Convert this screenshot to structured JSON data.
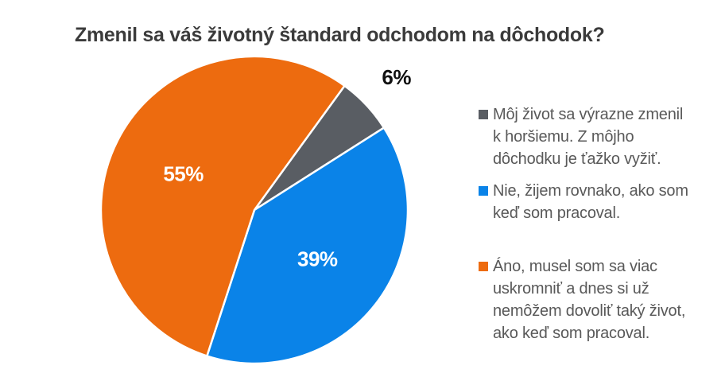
{
  "chart_data": {
    "type": "pie",
    "title": "Zmenil sa váš životný štandard odchodom na dôchodok?",
    "unit": "%",
    "start_angle_deg": 36,
    "legend_position": "right",
    "background_color": "#ffffff",
    "title_color": "#3b3b3b",
    "legend_text_color": "#595959",
    "slices": [
      {
        "name": "worse",
        "label": "Môj život sa výrazne zmenil\nk horšiemu. Z môjho\ndôchodku je ťažko vyžiť.",
        "value": 6,
        "pct_label": "6%",
        "color": "#595d63",
        "pct_label_color": "#111111",
        "pct_label_placement": "outside"
      },
      {
        "name": "same",
        "label": "Nie, žijem rovnako, ako som\nkeď som pracoval.",
        "value": 39,
        "pct_label": "39%",
        "color": "#0a83e8",
        "pct_label_color": "#ffffff",
        "pct_label_placement": "inside"
      },
      {
        "name": "more-modest",
        "label": "Áno, musel som sa viac\nuskromniť a dnes si už\nnemôžem dovoliť taký život,\nako keď som pracoval.",
        "value": 55,
        "pct_label": "55%",
        "color": "#ed6b0f",
        "pct_label_color": "#ffffff",
        "pct_label_placement": "inside"
      }
    ]
  }
}
